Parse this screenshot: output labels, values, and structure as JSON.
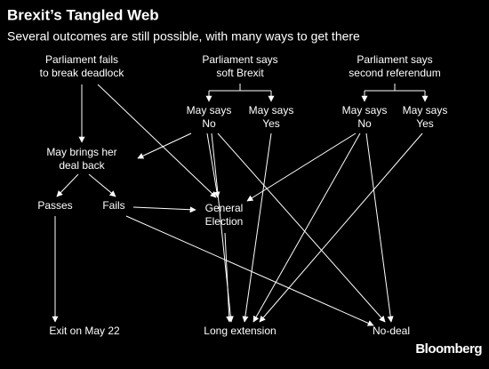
{
  "header": {
    "title": "Brexit’s Tangled Web",
    "subtitle": "Several outcomes are still possible, with many ways to get there"
  },
  "nodes": [
    {
      "lines": [
        "Parliament fails",
        "to break deadlock"
      ]
    },
    {
      "lines": [
        "Parliament says",
        "soft Brexit"
      ]
    },
    {
      "lines": [
        "Parliament says",
        "second referendum"
      ]
    },
    {
      "lines": [
        "May says",
        "No"
      ]
    },
    {
      "lines": [
        "May says",
        "Yes"
      ]
    },
    {
      "lines": [
        "May says",
        "No"
      ]
    },
    {
      "lines": [
        "May says",
        "Yes"
      ]
    },
    {
      "lines": [
        "May brings her",
        "deal back"
      ]
    },
    {
      "lines": [
        "Passes"
      ]
    },
    {
      "lines": [
        "Fails"
      ]
    },
    {
      "lines": [
        "General",
        "Election"
      ]
    },
    {
      "lines": [
        "Exit on May 22"
      ]
    },
    {
      "lines": [
        "Long extension"
      ]
    },
    {
      "lines": [
        "No-deal"
      ]
    }
  ],
  "source": "Bloomberg"
}
